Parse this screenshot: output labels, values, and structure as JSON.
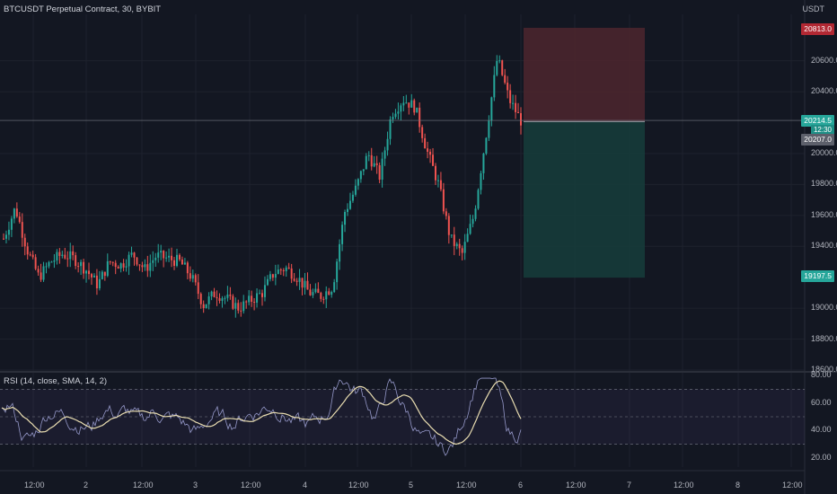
{
  "header": {
    "symbol_title": "BTCUSDT Perpetual Contract, 30, BYBIT",
    "currency": "USDT"
  },
  "price_axis": {
    "ticks": [
      "20600.0",
      "20400.0",
      "20000.0",
      "19800.0",
      "19600.0",
      "19400.0",
      "19000.0",
      "18800.0",
      "18600.0"
    ],
    "stop_tag": "20813.0",
    "current_price": "20214.5",
    "countdown": "12:30",
    "entry_tag": "20207.0",
    "target_tag": "19197.5"
  },
  "rsi": {
    "title": "RSI (14, close, SMA, 14, 2)",
    "ticks": [
      "80.00",
      "60.00",
      "40.00",
      "20.00"
    ]
  },
  "time_axis": {
    "labels": [
      "12:00",
      "2",
      "12:00",
      "3",
      "12:00",
      "4",
      "12:00",
      "5",
      "12:00",
      "6",
      "12:00",
      "7",
      "12:00",
      "8",
      "12:00"
    ]
  },
  "colors": {
    "background": "#131722",
    "up": "#26a69a",
    "down": "#ef5350",
    "stop_zone": "#4a252d",
    "target_zone": "#163b3a",
    "rsi_line": "#9598c9",
    "rsi_ma": "#e8dcb0"
  },
  "chart_data": {
    "type": "candlestick",
    "y_range": [
      18600,
      20900
    ],
    "rsi_range": [
      20,
      80
    ],
    "rsi_bands": [
      30,
      70
    ],
    "close_path": [
      [
        0,
        19450
      ],
      [
        1,
        19650
      ],
      [
        2,
        19380
      ],
      [
        3,
        19200
      ],
      [
        4,
        19300
      ],
      [
        5,
        19350
      ],
      [
        6,
        19320
      ],
      [
        7,
        19250
      ],
      [
        8,
        19150
      ],
      [
        9,
        19300
      ],
      [
        10,
        19280
      ],
      [
        11,
        19350
      ],
      [
        12,
        19250
      ],
      [
        13,
        19340
      ],
      [
        14,
        19320
      ],
      [
        15,
        19300
      ],
      [
        16,
        19200
      ],
      [
        17,
        19020
      ],
      [
        18,
        19100
      ],
      [
        19,
        19060
      ],
      [
        20,
        19000
      ],
      [
        21,
        19050
      ],
      [
        22,
        19100
      ],
      [
        23,
        19230
      ],
      [
        24,
        19260
      ],
      [
        25,
        19200
      ],
      [
        26,
        19100
      ],
      [
        27,
        19080
      ],
      [
        28,
        19140
      ],
      [
        29,
        19620
      ],
      [
        30,
        19780
      ],
      [
        31,
        20000
      ],
      [
        32,
        19850
      ],
      [
        33,
        20260
      ],
      [
        34,
        20350
      ],
      [
        35,
        20300
      ],
      [
        36,
        20020
      ],
      [
        37,
        19800
      ],
      [
        38,
        19450
      ],
      [
        39,
        19350
      ],
      [
        40,
        19600
      ],
      [
        41,
        20100
      ],
      [
        42,
        20620
      ],
      [
        43,
        20350
      ],
      [
        44,
        20214
      ]
    ],
    "trade": {
      "entry": 20207.0,
      "stop": 20813.0,
      "target": 19197.5
    }
  }
}
